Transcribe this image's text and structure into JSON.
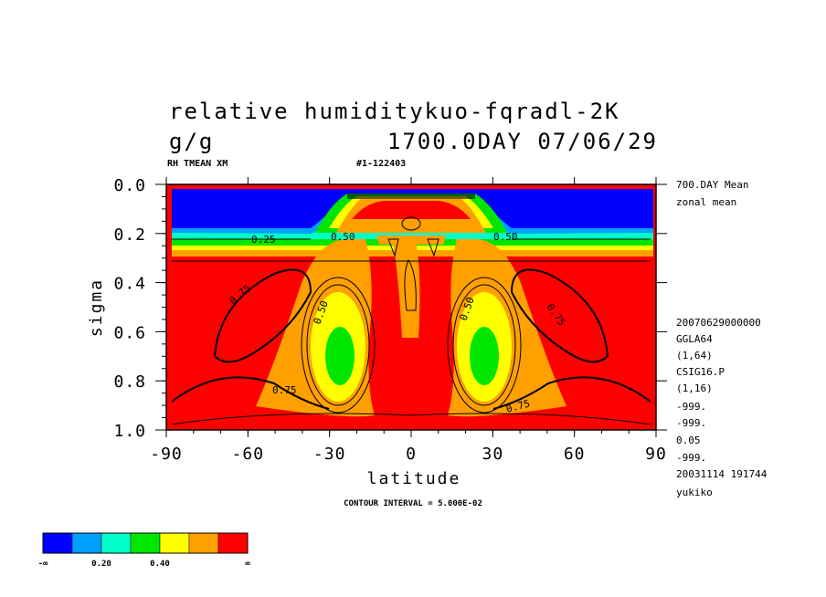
{
  "chart_data": {
    "type": "contour",
    "title_line1": "relative humiditykuo-fqradl-2K",
    "title_line2_left": "g/g",
    "title_line2_right": "1700.0DAY 07/06/29",
    "subtitle_left": "RH TMEAN XM",
    "subtitle_right": "#1-122403",
    "xlabel": "latitude",
    "ylabel": "sigma",
    "xlim": [
      -90,
      90
    ],
    "ylim": [
      0.0,
      1.0
    ],
    "y_inverted": true,
    "x_ticks": [
      "-90",
      "-60",
      "-30",
      "0",
      "30",
      "60",
      "90"
    ],
    "y_ticks": [
      "0.0",
      "0.2",
      "0.4",
      "0.6",
      "0.8",
      "1.0"
    ],
    "contour_interval_text": "CONTOUR INTERVAL = 5.000E-02",
    "contour_labels": [
      "0.25",
      "0.50",
      "0.50",
      "0.50",
      "0.50",
      "0.75",
      "0.75",
      "0.75",
      "0.75",
      "0.75",
      "0.75"
    ],
    "approx_regions": [
      {
        "region": "upper troposphere / stratosphere poleward of 35 deg",
        "sigma": [
          0.02,
          0.2
        ],
        "value": "< 0.10"
      },
      {
        "region": "lower troposphere broad band",
        "sigma": [
          0.3,
          1.0
        ],
        "value": "> 0.75"
      },
      {
        "region": "subtropical minima near +/-28 deg",
        "sigma": [
          0.6,
          0.8
        ],
        "value": "0.30-0.40"
      },
      {
        "region": "equatorial column",
        "sigma": [
          0.3,
          0.6
        ],
        "value": "0.60-0.75"
      }
    ],
    "side_info": [
      "700.DAY Mean",
      "zonal mean",
      "20070629000000",
      "GGLA64",
      "(1,64)",
      "CSIG16.P",
      "(1,16)",
      "-999.",
      "-999.",
      "0.05",
      "-999.",
      "20031114 191744",
      "yukiko"
    ],
    "legend": {
      "colors": [
        "#0000ff",
        "#00a0ff",
        "#00ffc8",
        "#00e600",
        "#ffff00",
        "#ffa000",
        "#ff0000"
      ],
      "labels": [
        "-∞",
        "0.20",
        "0.40",
        "∞"
      ]
    }
  }
}
